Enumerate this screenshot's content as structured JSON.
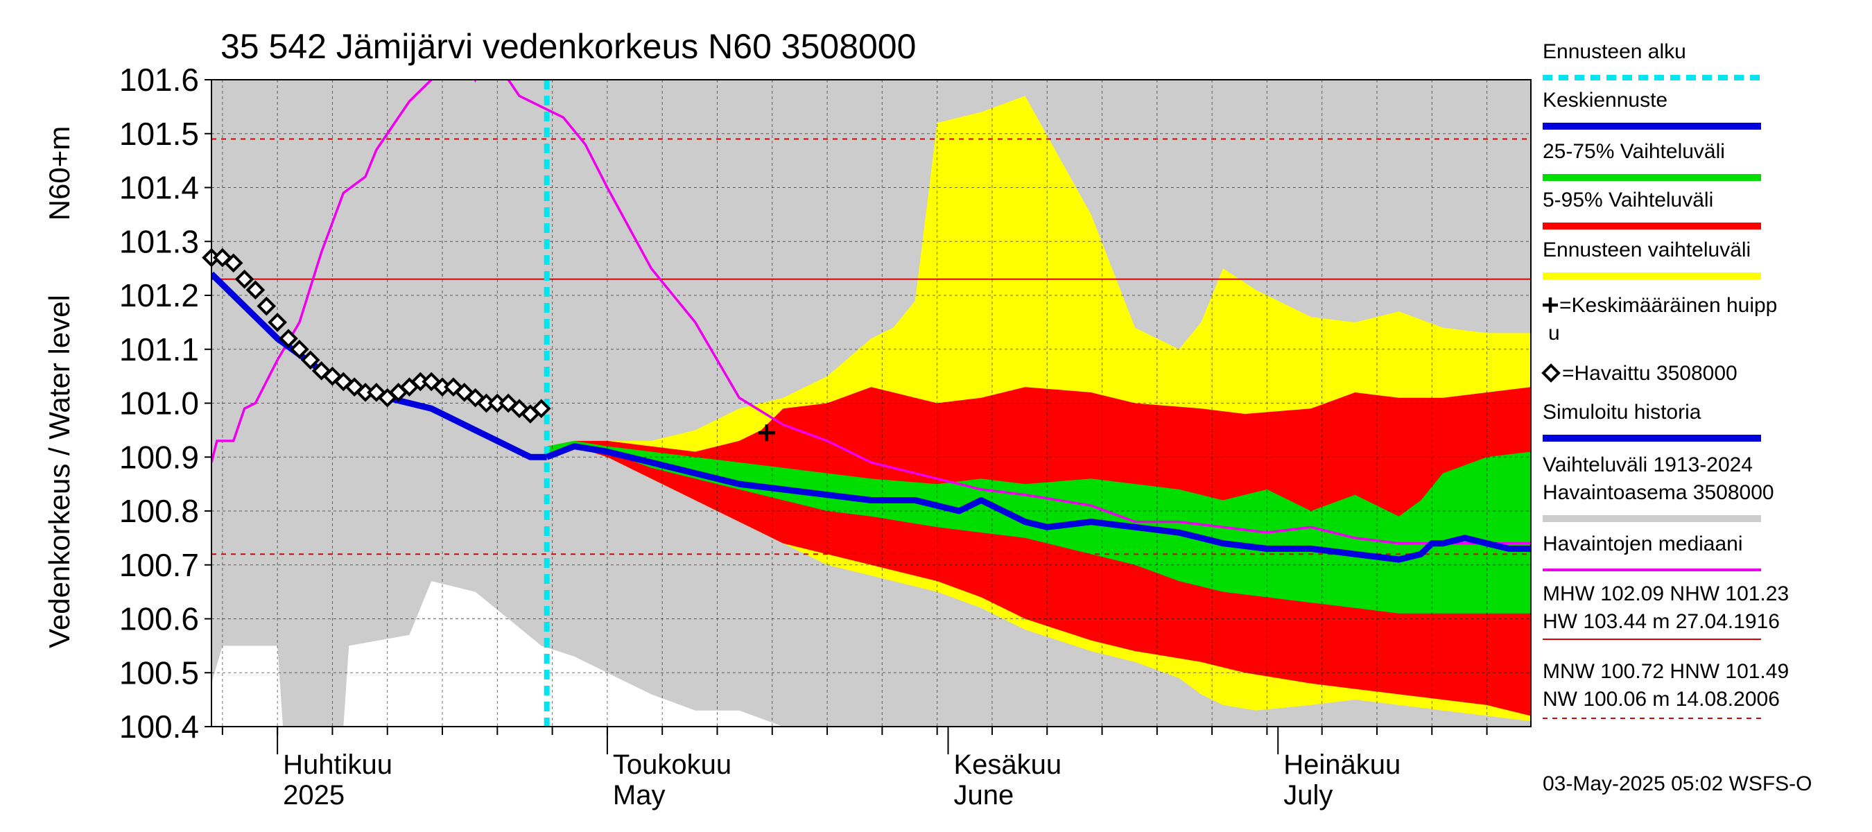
{
  "chart_data": {
    "type": "area",
    "title": "35 542 Jämijärvi vedenkorkeus N60 3508000",
    "ylabel_line1": "N60+m",
    "ylabel_line2": "Vedenkorkeus / Water level",
    "footer": "03-May-2025 05:02 WSFS-O",
    "ylim": [
      100.4,
      101.6
    ],
    "y_ticks": [
      "100.4",
      "100.5",
      "100.6",
      "100.7",
      "100.8",
      "100.9",
      "101.0",
      "101.1",
      "101.2",
      "101.3",
      "101.4",
      "101.5",
      "101.6"
    ],
    "x_range_days": [
      0,
      120
    ],
    "x_start_date": "2025-03-26",
    "x_month_labels": [
      {
        "day": 6,
        "fi": "Huhtikuu",
        "en": "2025"
      },
      {
        "day": 36,
        "fi": "Toukokuu",
        "en": "May"
      },
      {
        "day": 67,
        "fi": "Kesäkuu",
        "en": "June"
      },
      {
        "day": 97,
        "fi": "Heinäkuu",
        "en": "July"
      }
    ],
    "month_boundaries_days": [
      6,
      36,
      67,
      97
    ],
    "forecast_start_day": 30.5,
    "reference_lines": [
      {
        "name": "NHW",
        "value": 101.23,
        "color": "#dd0000",
        "style": "solid"
      },
      {
        "name": "HNW",
        "value": 101.49,
        "color": "#dd0000",
        "style": "dashed"
      },
      {
        "name": "MNW",
        "value": 100.72,
        "color": "#dd0000",
        "style": "dashed"
      }
    ],
    "series": [
      {
        "key": "historical_range",
        "color": "#cccccc",
        "day": [
          0,
          1,
          6,
          6.5,
          12,
          12.5,
          18,
          20,
          24,
          27,
          30,
          33,
          36,
          40,
          44,
          48,
          52,
          60,
          70,
          80,
          90,
          100,
          110,
          120
        ],
        "low": [
          100.48,
          100.55,
          100.55,
          100.4,
          100.4,
          100.55,
          100.57,
          100.67,
          100.65,
          100.6,
          100.55,
          100.53,
          100.5,
          100.46,
          100.43,
          100.43,
          100.4,
          100.4,
          100.4,
          100.4,
          100.4,
          100.4,
          100.4,
          100.4
        ],
        "high": [
          101.6,
          101.6,
          101.6,
          101.6,
          101.6,
          101.6,
          101.6,
          101.6,
          101.6,
          101.6,
          101.6,
          101.6,
          101.6,
          101.6,
          101.6,
          101.6,
          101.6,
          101.6,
          101.6,
          101.6,
          101.6,
          101.6,
          101.6,
          101.6
        ]
      },
      {
        "key": "forecast_range_5_95_total",
        "color": "#ffff00",
        "day": [
          30.5,
          33,
          36,
          40,
          44,
          48,
          52,
          56,
          60,
          62,
          64,
          66,
          70,
          74,
          80,
          84,
          88,
          90,
          92,
          95,
          100,
          104,
          108,
          112,
          116,
          120
        ],
        "low": [
          100.9,
          100.92,
          100.9,
          100.86,
          100.82,
          100.78,
          100.74,
          100.7,
          100.68,
          100.67,
          100.66,
          100.65,
          100.62,
          100.58,
          100.54,
          100.52,
          100.49,
          100.46,
          100.44,
          100.43,
          100.44,
          100.45,
          100.44,
          100.43,
          100.42,
          100.41
        ],
        "high": [
          100.92,
          100.93,
          100.93,
          100.93,
          100.95,
          100.99,
          101.01,
          101.05,
          101.12,
          101.14,
          101.19,
          101.52,
          101.54,
          101.57,
          101.35,
          101.14,
          101.1,
          101.15,
          101.25,
          101.21,
          101.16,
          101.15,
          101.17,
          101.14,
          101.13,
          101.13
        ]
      },
      {
        "key": "range_5_95",
        "color": "#ff0000",
        "day": [
          30.5,
          33,
          36,
          40,
          44,
          48,
          50,
          52,
          56,
          60,
          66,
          70,
          74,
          80,
          84,
          90,
          94,
          100,
          104,
          108,
          112,
          116,
          120
        ],
        "low": [
          100.9,
          100.92,
          100.9,
          100.86,
          100.82,
          100.78,
          100.76,
          100.74,
          100.72,
          100.7,
          100.67,
          100.64,
          100.6,
          100.56,
          100.54,
          100.52,
          100.5,
          100.48,
          100.47,
          100.46,
          100.45,
          100.44,
          100.42
        ],
        "high": [
          100.92,
          100.93,
          100.93,
          100.92,
          100.91,
          100.93,
          100.95,
          100.99,
          101.0,
          101.03,
          101.0,
          101.01,
          101.03,
          101.02,
          101.0,
          100.99,
          100.98,
          100.99,
          101.02,
          101.01,
          101.01,
          101.02,
          101.03
        ]
      },
      {
        "key": "range_25_75",
        "color": "#00dd00",
        "day": [
          30.5,
          33,
          36,
          40,
          44,
          48,
          52,
          56,
          60,
          66,
          70,
          74,
          80,
          84,
          88,
          92,
          96,
          100,
          104,
          108,
          110,
          112,
          116,
          120
        ],
        "low": [
          100.9,
          100.92,
          100.91,
          100.88,
          100.86,
          100.84,
          100.82,
          100.8,
          100.79,
          100.77,
          100.76,
          100.75,
          100.72,
          100.7,
          100.67,
          100.65,
          100.64,
          100.63,
          100.62,
          100.61,
          100.61,
          100.61,
          100.61,
          100.61
        ],
        "high": [
          100.92,
          100.93,
          100.92,
          100.91,
          100.9,
          100.89,
          100.88,
          100.87,
          100.86,
          100.85,
          100.86,
          100.85,
          100.86,
          100.85,
          100.84,
          100.82,
          100.84,
          100.8,
          100.83,
          100.79,
          100.82,
          100.87,
          100.9,
          100.91
        ]
      },
      {
        "key": "median_observations",
        "color": "#ee00ee",
        "day": [
          0,
          0.5,
          2,
          3,
          4,
          6,
          8,
          10,
          12,
          14,
          15,
          17,
          18,
          20,
          21,
          23,
          24,
          25,
          26,
          27,
          28,
          30,
          32,
          34,
          36,
          40,
          44,
          48,
          52,
          56,
          60,
          66,
          70,
          74,
          80,
          84,
          88,
          92,
          96,
          100,
          104,
          108,
          112,
          116,
          120
        ],
        "y": [
          100.89,
          100.93,
          100.93,
          100.99,
          101.0,
          101.08,
          101.15,
          101.28,
          101.39,
          101.42,
          101.47,
          101.53,
          101.56,
          101.6,
          101.65,
          101.66,
          101.6,
          101.64,
          101.63,
          101.6,
          101.57,
          101.55,
          101.53,
          101.48,
          101.4,
          101.25,
          101.15,
          101.01,
          100.96,
          100.93,
          100.89,
          100.86,
          100.84,
          100.83,
          100.81,
          100.78,
          100.78,
          100.77,
          100.76,
          100.77,
          100.75,
          100.74,
          100.74,
          100.74,
          100.74
        ]
      },
      {
        "key": "simulated_history",
        "color": "#0000dd",
        "day": [
          0,
          2,
          4,
          6,
          8,
          10,
          12,
          14,
          16,
          18,
          20,
          22,
          24,
          26,
          28,
          29,
          30.5
        ],
        "y": [
          101.24,
          101.2,
          101.16,
          101.12,
          101.09,
          101.06,
          101.04,
          101.02,
          101.01,
          101.0,
          100.99,
          100.97,
          100.95,
          100.93,
          100.91,
          100.9,
          100.9
        ]
      },
      {
        "key": "mean_forecast",
        "color": "#0000dd",
        "day": [
          30.5,
          33,
          36,
          40,
          44,
          48,
          52,
          56,
          60,
          64,
          68,
          70,
          72,
          74,
          76,
          80,
          84,
          88,
          90,
          92,
          96,
          100,
          104,
          108,
          110,
          111,
          112,
          114,
          116,
          118,
          120
        ],
        "y": [
          100.9,
          100.92,
          100.91,
          100.89,
          100.87,
          100.85,
          100.84,
          100.83,
          100.82,
          100.82,
          100.8,
          100.82,
          100.8,
          100.78,
          100.77,
          100.78,
          100.77,
          100.76,
          100.75,
          100.74,
          100.73,
          100.73,
          100.72,
          100.71,
          100.72,
          100.74,
          100.74,
          100.75,
          100.74,
          100.73,
          100.73
        ]
      },
      {
        "key": "observed",
        "color": "#000000",
        "day": [
          0,
          1,
          2,
          3,
          4,
          5,
          6,
          7,
          8,
          9,
          10,
          11,
          12,
          13,
          14,
          15,
          16,
          17,
          18,
          19,
          20,
          21,
          22,
          23,
          24,
          25,
          26,
          27,
          28,
          29,
          30
        ],
        "y": [
          101.27,
          101.27,
          101.26,
          101.23,
          101.21,
          101.18,
          101.15,
          101.12,
          101.1,
          101.08,
          101.06,
          101.05,
          101.04,
          101.03,
          101.02,
          101.02,
          101.01,
          101.02,
          101.03,
          101.04,
          101.04,
          101.03,
          101.03,
          101.02,
          101.01,
          101.0,
          101.0,
          101.0,
          100.99,
          100.98,
          100.99
        ]
      }
    ],
    "peak_marker": {
      "day": 50.5,
      "value": 100.945
    },
    "legend": [
      {
        "key": "forecast_start",
        "label": "Ennusteen alku",
        "color": "#00e5ee",
        "style": "dashed",
        "weight": "thin"
      },
      {
        "key": "mean_forecast",
        "label": "Keskiennuste",
        "color": "#0000dd",
        "style": "solid",
        "weight": "thick"
      },
      {
        "key": "range_25_75",
        "label": "25-75% Vaihteluväli",
        "color": "#00dd00",
        "style": "solid",
        "weight": "thick"
      },
      {
        "key": "range_5_95",
        "label": "5-95% Vaihteluväli",
        "color": "#ff0000",
        "style": "solid",
        "weight": "thick"
      },
      {
        "key": "forecast_range",
        "label": "Ennusteen vaihteluväli",
        "color": "#ffff00",
        "style": "solid",
        "weight": "thick"
      },
      {
        "key": "peak",
        "label": "=Keskimääräinen huipp",
        "label2": "u",
        "symbol": "cross"
      },
      {
        "key": "observed",
        "label": "=Havaittu 3508000",
        "symbol": "diamond"
      },
      {
        "key": "simulated",
        "label": "Simuloitu historia",
        "color": "#0000dd",
        "style": "solid",
        "weight": "thick"
      },
      {
        "key": "hist_range",
        "label": "Vaihteluväli 1913-2024",
        "label2": " Havaintoasema 3508000",
        "color": "#cccccc",
        "style": "solid",
        "weight": "thick"
      },
      {
        "key": "median",
        "label": "Havaintojen mediaani",
        "color": "#ee00ee",
        "style": "solid",
        "weight": "medium"
      }
    ],
    "stats": {
      "line1": "MHW 102.09 NHW 101.23",
      "line2": "HW 103.44 m 27.04.1916",
      "line3": "MNW 100.72 HNW 101.49",
      "line4": "NW 100.06 m 14.08.2006"
    }
  }
}
